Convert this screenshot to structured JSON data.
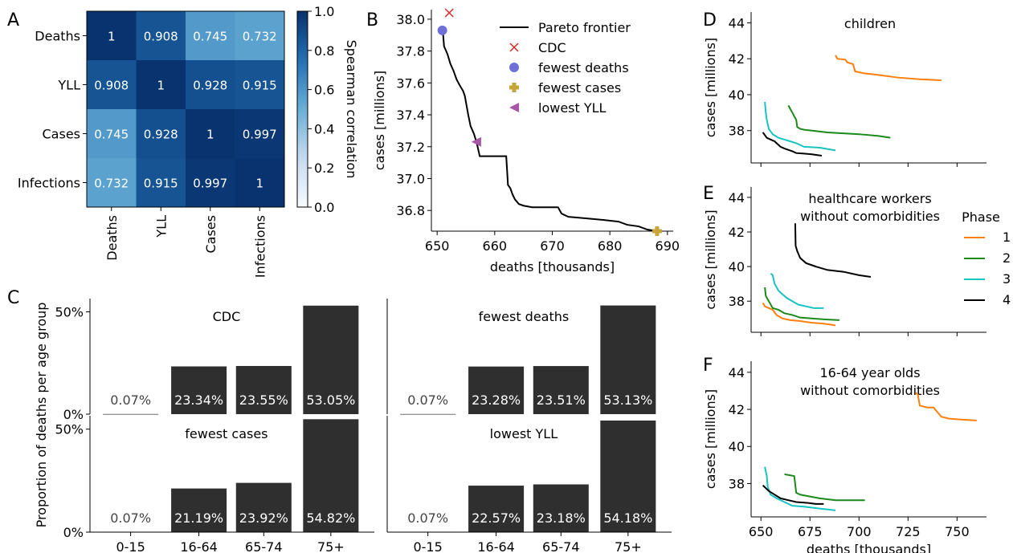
{
  "chart_data": [
    {
      "panel": "A",
      "type": "heatmap",
      "row_labels": [
        "Deaths",
        "YLL",
        "Cases",
        "Infections"
      ],
      "col_labels": [
        "Deaths",
        "YLL",
        "Cases",
        "Infections"
      ],
      "values": [
        [
          1,
          0.908,
          0.745,
          0.732
        ],
        [
          0.908,
          1,
          0.928,
          0.915
        ],
        [
          0.745,
          0.928,
          1,
          0.997
        ],
        [
          0.732,
          0.915,
          0.997,
          1
        ]
      ],
      "cell_labels": [
        [
          "1",
          "0.908",
          "0.745",
          "0.732"
        ],
        [
          "0.908",
          "1",
          "0.928",
          "0.915"
        ],
        [
          "0.745",
          "0.928",
          "1",
          "0.997"
        ],
        [
          "0.732",
          "0.915",
          "0.997",
          "1"
        ]
      ],
      "colorbar": {
        "label": "Spearman correlation",
        "range": [
          0,
          1
        ],
        "ticks": [
          "0.0",
          "0.2",
          "0.4",
          "0.6",
          "0.8",
          "1.0"
        ]
      }
    },
    {
      "panel": "B",
      "type": "line",
      "xlabel": "deaths [thousands]",
      "ylabel": "cases [millions]",
      "xlim": [
        649,
        691
      ],
      "ylim": [
        36.67,
        38.06
      ],
      "xticks": [
        "650",
        "660",
        "670",
        "680",
        "690"
      ],
      "yticks": [
        "36.8",
        "37.0",
        "37.2",
        "37.4",
        "37.6",
        "37.8",
        "38.0"
      ],
      "legend_position": "top-right",
      "series": [
        {
          "name": "Pareto frontier",
          "points": [
            [
              651.0,
              37.92
            ],
            [
              651.2,
              37.83
            ],
            [
              651.8,
              37.78
            ],
            [
              652.3,
              37.72
            ],
            [
              652.8,
              37.68
            ],
            [
              653.4,
              37.62
            ],
            [
              654.0,
              37.58
            ],
            [
              654.5,
              37.55
            ],
            [
              654.8,
              37.52
            ],
            [
              655.1,
              37.46
            ],
            [
              655.4,
              37.4
            ],
            [
              655.8,
              37.33
            ],
            [
              656.4,
              37.28
            ],
            [
              656.9,
              37.22
            ],
            [
              657.4,
              37.14
            ],
            [
              662.0,
              37.14
            ],
            [
              662.3,
              36.96
            ],
            [
              662.7,
              36.94
            ],
            [
              663.1,
              36.9
            ],
            [
              663.5,
              36.87
            ],
            [
              664.2,
              36.84
            ],
            [
              665.0,
              36.83
            ],
            [
              666.5,
              36.82
            ],
            [
              671.0,
              36.82
            ],
            [
              671.6,
              36.78
            ],
            [
              672.8,
              36.76
            ],
            [
              676.0,
              36.75
            ],
            [
              679.0,
              36.74
            ],
            [
              681.5,
              36.73
            ],
            [
              683.0,
              36.71
            ],
            [
              685.0,
              36.7
            ],
            [
              686.5,
              36.68
            ],
            [
              688.2,
              36.67
            ]
          ]
        },
        {
          "name": "CDC",
          "points": [
            [
              652.1,
              38.04
            ]
          ]
        },
        {
          "name": "fewest deaths",
          "points": [
            [
              650.9,
              37.93
            ]
          ]
        },
        {
          "name": "fewest cases",
          "points": [
            [
              688.2,
              36.67
            ]
          ]
        },
        {
          "name": "lowest YLL",
          "points": [
            [
              656.8,
              37.23
            ]
          ]
        }
      ]
    },
    {
      "panel": "C",
      "type": "bar",
      "ylabel": "Proportion of deaths per age group",
      "categories": [
        "0-15",
        "16-64",
        "65-74",
        "75+"
      ],
      "yticks": [
        "0%",
        "50%"
      ],
      "subplots": [
        {
          "title": "CDC",
          "values": [
            0.07,
            23.34,
            23.55,
            53.05
          ],
          "labels": [
            "0.07%",
            "23.34%",
            "23.55%",
            "53.05%"
          ]
        },
        {
          "title": "fewest deaths",
          "values": [
            0.07,
            23.28,
            23.51,
            53.13
          ],
          "labels": [
            "0.07%",
            "23.28%",
            "23.51%",
            "53.13%"
          ]
        },
        {
          "title": "fewest cases",
          "values": [
            0.07,
            21.19,
            23.92,
            54.82
          ],
          "labels": [
            "0.07%",
            "21.19%",
            "23.92%",
            "54.82%"
          ]
        },
        {
          "title": "lowest YLL",
          "values": [
            0.07,
            22.57,
            23.18,
            54.18
          ],
          "labels": [
            "0.07%",
            "22.57%",
            "23.18%",
            "54.18%"
          ]
        }
      ]
    },
    {
      "panel": "D",
      "type": "line",
      "title": "children",
      "ylabel": "cases [millions]",
      "xlim": [
        645,
        765
      ],
      "ylim": [
        36.2,
        44.6
      ],
      "yticks": [
        "38",
        "40",
        "42",
        "44"
      ],
      "series": [
        {
          "name": "1",
          "points": [
            [
              688,
              42.2
            ],
            [
              689,
              42.0
            ],
            [
              693,
              41.95
            ],
            [
              694,
              41.8
            ],
            [
              697,
              41.7
            ],
            [
              698,
              41.3
            ],
            [
              702,
              41.2
            ],
            [
              710,
              41.1
            ],
            [
              720,
              40.95
            ],
            [
              732,
              40.85
            ],
            [
              742,
              40.8
            ]
          ]
        },
        {
          "name": "2",
          "points": [
            [
              664,
              39.4
            ],
            [
              665,
              39.2
            ],
            [
              666,
              39.0
            ],
            [
              667,
              38.8
            ],
            [
              668,
              38.6
            ],
            [
              668.5,
              38.2
            ],
            [
              670,
              38.1
            ],
            [
              672,
              38.05
            ],
            [
              676,
              38.0
            ],
            [
              684,
              37.9
            ],
            [
              692,
              37.85
            ],
            [
              700,
              37.8
            ],
            [
              710,
              37.7
            ],
            [
              716,
              37.6
            ]
          ]
        },
        {
          "name": "3",
          "points": [
            [
              652,
              39.6
            ],
            [
              652.5,
              39.0
            ],
            [
              653,
              38.6
            ],
            [
              654,
              38.1
            ],
            [
              656,
              37.8
            ],
            [
              659,
              37.6
            ],
            [
              662,
              37.5
            ],
            [
              665,
              37.4
            ],
            [
              668,
              37.3
            ],
            [
              672,
              37.1
            ],
            [
              680,
              37.05
            ],
            [
              688,
              36.9
            ]
          ]
        },
        {
          "name": "4",
          "points": [
            [
              651,
              37.9
            ],
            [
              652,
              37.75
            ],
            [
              653,
              37.6
            ],
            [
              655,
              37.5
            ],
            [
              657,
              37.4
            ],
            [
              658,
              37.3
            ],
            [
              660,
              37.1
            ],
            [
              662,
              37.0
            ],
            [
              666,
              36.85
            ],
            [
              668,
              36.75
            ],
            [
              672,
              36.72
            ],
            [
              676,
              36.68
            ],
            [
              681,
              36.6
            ]
          ]
        }
      ]
    },
    {
      "panel": "E",
      "type": "line",
      "title": "healthcare workers without comorbidities",
      "title_lines": [
        "healthcare workers",
        "without comorbidities"
      ],
      "ylabel": "cases [millions]",
      "xlim": [
        645,
        765
      ],
      "ylim": [
        36.2,
        44.6
      ],
      "yticks": [
        "38",
        "40",
        "42",
        "44"
      ],
      "legend": {
        "title": "Phase",
        "position": "right",
        "entries": [
          "1",
          "2",
          "3",
          "4"
        ]
      },
      "series": [
        {
          "name": "1",
          "points": [
            [
              651,
              37.9
            ],
            [
              652,
              37.7
            ],
            [
              654,
              37.6
            ],
            [
              656,
              37.5
            ],
            [
              658,
              37.2
            ],
            [
              661,
              37.0
            ],
            [
              665,
              36.9
            ],
            [
              670,
              36.85
            ],
            [
              676,
              36.75
            ],
            [
              682,
              36.7
            ],
            [
              688,
              36.6
            ]
          ]
        },
        {
          "name": "2",
          "points": [
            [
              652,
              38.8
            ],
            [
              652.5,
              38.3
            ],
            [
              654,
              38.0
            ],
            [
              656,
              37.6
            ],
            [
              659,
              37.5
            ],
            [
              662,
              37.3
            ],
            [
              666,
              37.2
            ],
            [
              670,
              37.05
            ],
            [
              676,
              37.0
            ],
            [
              682,
              36.95
            ],
            [
              690,
              36.9
            ]
          ]
        },
        {
          "name": "3",
          "points": [
            [
              655,
              39.6
            ],
            [
              656,
              39.5
            ],
            [
              657,
              39.0
            ],
            [
              659,
              38.6
            ],
            [
              661,
              38.4
            ],
            [
              663,
              38.2
            ],
            [
              666,
              38.0
            ],
            [
              669,
              37.8
            ],
            [
              673,
              37.7
            ],
            [
              677,
              37.6
            ],
            [
              682,
              37.6
            ]
          ]
        },
        {
          "name": "4",
          "points": [
            [
              667.5,
              42.5
            ],
            [
              667.7,
              41.2
            ],
            [
              668.5,
              40.9
            ],
            [
              670,
              40.5
            ],
            [
              673,
              40.2
            ],
            [
              678,
              40.0
            ],
            [
              684,
              39.8
            ],
            [
              692,
              39.7
            ],
            [
              700,
              39.5
            ],
            [
              706,
              39.4
            ]
          ]
        }
      ]
    },
    {
      "panel": "F",
      "type": "line",
      "title": "16-64 year olds without comorbidities",
      "title_lines": [
        "16-64 year olds",
        "without comorbidities"
      ],
      "xlabel": "deaths [thousands]",
      "ylabel": "cases [millions]",
      "xlim": [
        645,
        765
      ],
      "ylim": [
        36.2,
        44.6
      ],
      "xticks": [
        "650",
        "675",
        "700",
        "725",
        "750"
      ],
      "yticks": [
        "38",
        "40",
        "42",
        "44"
      ],
      "series": [
        {
          "name": "1",
          "points": [
            [
              729,
              42.9
            ],
            [
              730,
              42.8
            ],
            [
              731,
              42.2
            ],
            [
              735,
              42.1
            ],
            [
              738,
              42.1
            ],
            [
              742,
              41.6
            ],
            [
              746,
              41.5
            ],
            [
              752,
              41.45
            ],
            [
              760,
              41.4
            ]
          ]
        },
        {
          "name": "2",
          "points": [
            [
              662,
              38.5
            ],
            [
              667,
              38.4
            ],
            [
              668,
              37.5
            ],
            [
              670,
              37.4
            ],
            [
              675,
              37.3
            ],
            [
              680,
              37.2
            ],
            [
              688,
              37.1
            ],
            [
              696,
              37.1
            ],
            [
              703,
              37.1
            ]
          ]
        },
        {
          "name": "3",
          "points": [
            [
              652,
              38.9
            ],
            [
              653,
              38.4
            ],
            [
              653.5,
              37.8
            ],
            [
              655,
              37.4
            ],
            [
              658,
              37.2
            ],
            [
              662,
              37.0
            ],
            [
              666,
              36.8
            ],
            [
              672,
              36.75
            ],
            [
              680,
              36.65
            ],
            [
              688,
              36.55
            ]
          ]
        },
        {
          "name": "4",
          "points": [
            [
              651,
              37.9
            ],
            [
              652,
              37.8
            ],
            [
              654,
              37.6
            ],
            [
              657,
              37.4
            ],
            [
              660,
              37.2
            ],
            [
              664,
              37.1
            ],
            [
              668,
              37.0
            ],
            [
              674,
              36.95
            ],
            [
              678,
              36.9
            ],
            [
              682,
              36.9
            ]
          ]
        }
      ]
    }
  ],
  "panel_letters": [
    "A",
    "B",
    "C",
    "D",
    "E",
    "F"
  ],
  "colors": {
    "phase1": "#ff7f0e",
    "phase2": "#1a8a1a",
    "phase3": "#17c3c3",
    "phase4": "#000000",
    "bar": "#2f2f2f",
    "cdc_marker": "#d62728",
    "fewest_deaths_marker": "#6f6fd8",
    "fewest_cases_marker": "#c8a33a",
    "lowest_yll_marker": "#a857a8"
  }
}
